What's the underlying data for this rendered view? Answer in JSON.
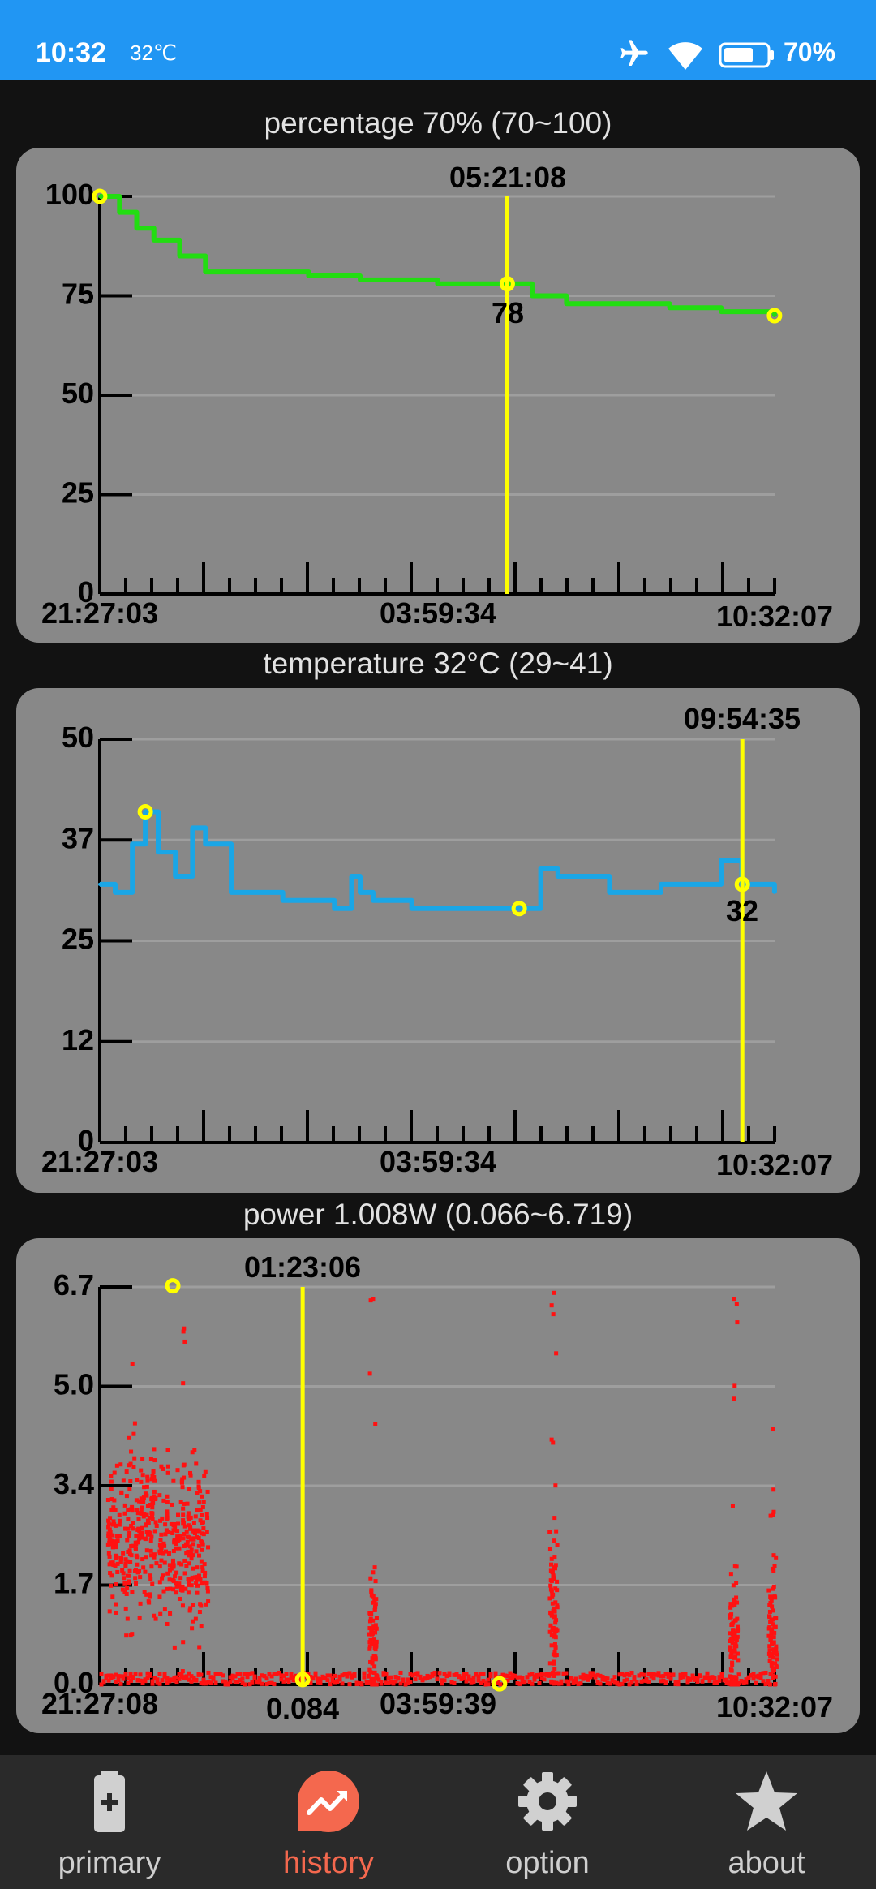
{
  "status_bar": {
    "time": "10:32",
    "temperature": "32℃",
    "battery": "70%",
    "battery_level": 0.7
  },
  "sections": [
    {
      "title": "percentage 70% (70~100)",
      "cursor_time": "05:21:08",
      "cursor_value": "78",
      "y_ticks": [
        "100",
        "75",
        "50",
        "25",
        "0"
      ],
      "x_labels": [
        "21:27:03",
        "03:59:34",
        "10:32:07"
      ]
    },
    {
      "title": "temperature 32°C (29~41)",
      "cursor_time": "09:54:35",
      "cursor_value": "32",
      "y_ticks": [
        "50",
        "37",
        "25",
        "12",
        "0"
      ],
      "x_labels": [
        "21:27:03",
        "03:59:34",
        "10:32:07"
      ]
    },
    {
      "title": "power 1.008W (0.066~6.719)",
      "cursor_time": "01:23:06",
      "cursor_value": "0.084",
      "y_ticks": [
        "6.7",
        "5.0",
        "3.4",
        "1.7",
        "0.0"
      ],
      "x_labels": [
        "21:27:08",
        "03:59:39",
        "10:32:07"
      ]
    }
  ],
  "chart_data": [
    {
      "type": "line",
      "title": "percentage 70% (70~100)",
      "ylim": [
        0,
        100
      ],
      "x_range": [
        "21:27:03",
        "10:32:07"
      ],
      "color": "#22dd11",
      "x": [
        "21:27",
        "21:50",
        "22:10",
        "22:30",
        "23:00",
        "23:30",
        "00:30",
        "01:30",
        "02:30",
        "04:00",
        "05:21",
        "05:50",
        "06:30",
        "07:30",
        "08:30",
        "09:30",
        "10:32"
      ],
      "y": [
        100,
        96,
        92,
        89,
        85,
        81,
        81,
        80,
        79,
        78,
        78,
        75,
        73,
        73,
        72,
        71,
        70
      ]
    },
    {
      "type": "line",
      "title": "temperature 32°C (29~41)",
      "ylim": [
        0,
        50
      ],
      "x_range": [
        "21:27:03",
        "10:32:07"
      ],
      "color": "#1aa6e6",
      "x": [
        "21:27",
        "21:45",
        "22:05",
        "22:20",
        "22:35",
        "22:55",
        "23:15",
        "23:30",
        "24:00",
        "01:00",
        "02:00",
        "02:20",
        "02:30",
        "02:45",
        "03:30",
        "04:30",
        "05:35",
        "06:00",
        "06:20",
        "07:20",
        "08:20",
        "09:00",
        "09:30",
        "09:54",
        "10:32"
      ],
      "y": [
        32,
        31,
        37,
        41,
        36,
        33,
        39,
        37,
        31,
        30,
        29,
        33,
        31,
        30,
        29,
        29,
        29,
        34,
        33,
        31,
        32,
        32,
        35,
        32,
        31
      ]
    },
    {
      "type": "scatter",
      "title": "power 1.008W (0.066~6.719)",
      "ylim": [
        0,
        6.7
      ],
      "x_range": [
        "21:27:08",
        "10:32:07"
      ],
      "color": "#ff1111",
      "clusters": [
        {
          "x": "22:05",
          "y_mean": 2.5,
          "y_max": 5.4
        },
        {
          "x": "23:05",
          "y_mean": 2.3,
          "y_max": 6.0
        },
        {
          "x": "02:45",
          "y_mean": 0.8,
          "y_max": 6.5
        },
        {
          "x": "06:15",
          "y_mean": 1.3,
          "y_max": 6.6
        },
        {
          "x": "09:45",
          "y_mean": 0.7,
          "y_max": 6.5
        },
        {
          "x": "10:30",
          "y_mean": 0.8,
          "y_max": 4.3
        }
      ],
      "baseline": 0.1,
      "max_marker": 6.719,
      "cursor": {
        "x": "01:23:06",
        "y": 0.084
      }
    }
  ],
  "nav": [
    {
      "label": "primary",
      "icon": "battery-icon",
      "active": false
    },
    {
      "label": "history",
      "icon": "trending-chart-icon",
      "active": true
    },
    {
      "label": "option",
      "icon": "gear-icon",
      "active": false
    },
    {
      "label": "about",
      "icon": "star-icon",
      "active": false
    }
  ]
}
